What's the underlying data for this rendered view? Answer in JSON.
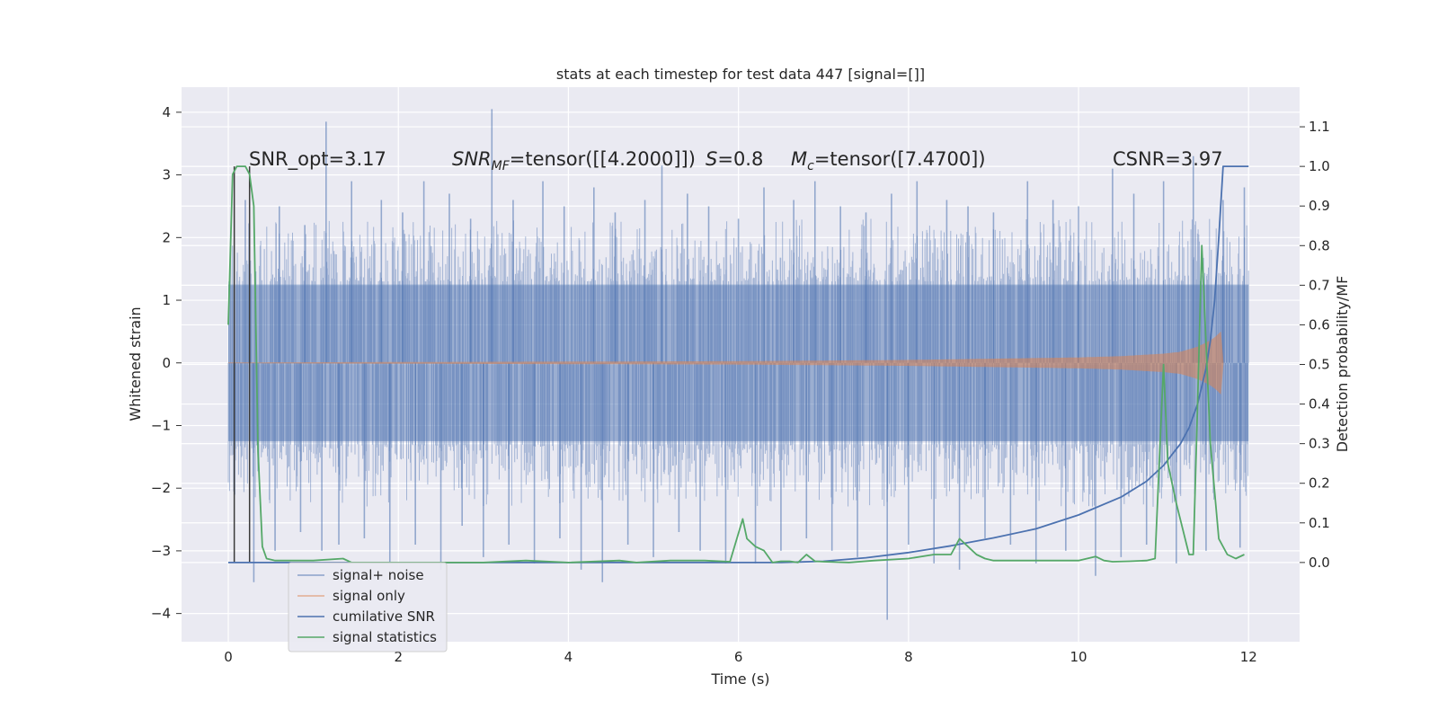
{
  "chart_data": {
    "type": "line",
    "title": "stats at each timestep for test data 447 [signal=[]]",
    "xlabel": "Time (s)",
    "ylabel_left": "Whitened strain",
    "ylabel_right": "Detection probability/MF",
    "xlim": [
      -0.55,
      12.6
    ],
    "ylim_left": [
      -4.45,
      4.4
    ],
    "ylim_right": [
      -0.2,
      1.2
    ],
    "grid": true,
    "legend_position": "lower-left",
    "x_ticks": [
      0,
      2,
      4,
      6,
      8,
      10,
      12
    ],
    "x_tick_labels": [
      "0",
      "2",
      "4",
      "6",
      "8",
      "10",
      "12"
    ],
    "y_left_ticks": [
      -4,
      -3,
      -2,
      -1,
      0,
      1,
      2,
      3,
      4
    ],
    "y_left_tick_labels": [
      "−4",
      "−3",
      "−2",
      "−1",
      "0",
      "1",
      "2",
      "3",
      "4"
    ],
    "y_right_ticks": [
      0.0,
      0.1,
      0.2,
      0.3,
      0.4,
      0.5,
      0.6,
      0.7,
      0.8,
      0.9,
      1.0,
      1.1
    ],
    "y_right_tick_labels": [
      "0.0",
      "0.1",
      "0.2",
      "0.3",
      "0.4",
      "0.5",
      "0.6",
      "0.7",
      "0.8",
      "0.9",
      "1.0",
      "1.1"
    ],
    "annotations": {
      "snr_opt": "SNR_opt=3.17",
      "snr_mf_main": "SNR",
      "snr_mf_sub": "MF",
      "snr_mf_rest": "=tensor([[4.2000]])",
      "s_main": "S",
      "s_rest": "=0.8",
      "mc_main": "M",
      "mc_sub": "c",
      "mc_rest": "=tensor([7.4700])",
      "csnr": "CSNR=3.97"
    },
    "vertical_lines_x": [
      0.07,
      0.25
    ],
    "series": [
      {
        "name": "signal+ noise",
        "axis": "left",
        "color": "#4c72b0",
        "t_range": [
          0,
          12
        ],
        "envelope_abs": 1.25,
        "spike_up_times": [
          0.2,
          0.6,
          0.9,
          1.15,
          1.45,
          1.8,
          2.05,
          2.3,
          2.6,
          2.85,
          3.1,
          3.35,
          3.7,
          3.95,
          4.3,
          4.55,
          4.9,
          5.1,
          5.4,
          5.65,
          6.0,
          6.3,
          6.65,
          6.9,
          7.2,
          7.5,
          7.8,
          8.1,
          8.45,
          8.7,
          9.0,
          9.4,
          9.7,
          10.0,
          10.4,
          10.65,
          11.0,
          11.35,
          11.7,
          11.95
        ],
        "spike_up_values": [
          2.6,
          2.5,
          2.2,
          3.85,
          2.9,
          2.6,
          2.4,
          2.9,
          2.7,
          2.3,
          4.05,
          2.6,
          2.9,
          2.5,
          2.8,
          2.4,
          2.6,
          3.15,
          2.7,
          2.5,
          2.3,
          2.8,
          2.6,
          2.9,
          2.5,
          2.4,
          2.7,
          2.9,
          2.6,
          2.5,
          2.4,
          2.9,
          2.6,
          2.5,
          3.1,
          2.7,
          2.9,
          3.3,
          2.6,
          2.8
        ],
        "spike_down_times": [
          0.3,
          0.55,
          0.85,
          1.1,
          1.3,
          1.6,
          1.9,
          2.2,
          2.5,
          2.75,
          3.0,
          3.3,
          3.6,
          3.9,
          4.15,
          4.4,
          4.7,
          5.0,
          5.3,
          5.55,
          5.85,
          6.2,
          6.5,
          6.8,
          7.1,
          7.4,
          7.75,
          8.0,
          8.3,
          8.6,
          8.9,
          9.2,
          9.5,
          9.85,
          10.2,
          10.5,
          10.8,
          11.15,
          11.5,
          11.9
        ],
        "spike_down_values": [
          -3.5,
          -3.0,
          -2.7,
          -3.0,
          -2.9,
          -2.8,
          -3.2,
          -2.9,
          -3.3,
          -2.6,
          -3.1,
          -2.9,
          -3.2,
          -2.8,
          -3.3,
          -3.5,
          -2.9,
          -3.1,
          -2.7,
          -3.0,
          -3.2,
          -3.2,
          -3.0,
          -2.8,
          -3.0,
          -3.1,
          -4.1,
          -2.9,
          -3.2,
          -3.3,
          -2.8,
          -2.9,
          -3.2,
          -3.0,
          -3.4,
          -3.1,
          -2.9,
          -3.2,
          -3.0,
          -2.95
        ]
      },
      {
        "name": "signal only",
        "axis": "left",
        "color": "#dd8452",
        "t_range": [
          0,
          11.7
        ],
        "amplitude_t": [
          0,
          6,
          8,
          9,
          10,
          10.5,
          11,
          11.2,
          11.4,
          11.55,
          11.62,
          11.68,
          11.7
        ],
        "amplitude": [
          0.0,
          0.02,
          0.04,
          0.06,
          0.08,
          0.1,
          0.14,
          0.17,
          0.25,
          0.35,
          0.42,
          0.5,
          0.0
        ]
      },
      {
        "name": "cumilative SNR",
        "axis": "right",
        "color": "#4c72b0",
        "x": [
          0,
          6.5,
          7.0,
          7.5,
          8.0,
          8.5,
          9.0,
          9.5,
          10.0,
          10.5,
          10.8,
          11.0,
          11.2,
          11.3,
          11.4,
          11.5,
          11.55,
          11.6,
          11.65,
          11.7,
          12.0
        ],
        "y": [
          0.0,
          0.0,
          0.003,
          0.012,
          0.025,
          0.042,
          0.062,
          0.085,
          0.12,
          0.165,
          0.205,
          0.245,
          0.3,
          0.34,
          0.4,
          0.49,
          0.56,
          0.66,
          0.82,
          1.0,
          1.0
        ]
      },
      {
        "name": "signal statistics",
        "axis": "right",
        "color": "#55a868",
        "x": [
          0,
          0.05,
          0.1,
          0.2,
          0.25,
          0.3,
          0.35,
          0.4,
          0.45,
          0.55,
          0.7,
          1.0,
          1.35,
          1.45,
          1.6,
          2.0,
          3.0,
          3.5,
          4.0,
          4.6,
          4.8,
          5.2,
          5.6,
          5.9,
          6.05,
          6.1,
          6.2,
          6.3,
          6.4,
          6.5,
          6.6,
          6.7,
          6.8,
          6.9,
          7.0,
          7.3,
          7.6,
          8.0,
          8.3,
          8.5,
          8.6,
          8.7,
          8.8,
          8.9,
          9.0,
          9.5,
          10.0,
          10.1,
          10.2,
          10.3,
          10.4,
          10.6,
          10.8,
          10.9,
          11.0,
          11.05,
          11.15,
          11.3,
          11.35,
          11.4,
          11.45,
          11.55,
          11.65,
          11.75,
          11.85,
          11.95
        ],
        "y": [
          0.6,
          0.98,
          1.0,
          1.0,
          0.98,
          0.9,
          0.28,
          0.04,
          0.01,
          0.005,
          0.005,
          0.005,
          0.01,
          0.0,
          0.0,
          0.0,
          0.0,
          0.005,
          0.0,
          0.005,
          0.0,
          0.005,
          0.005,
          0.002,
          0.11,
          0.06,
          0.04,
          0.03,
          0.0,
          0.003,
          0.003,
          0.0,
          0.02,
          0.003,
          0.002,
          0.0,
          0.005,
          0.01,
          0.02,
          0.02,
          0.06,
          0.04,
          0.02,
          0.01,
          0.005,
          0.005,
          0.005,
          0.01,
          0.015,
          0.005,
          0.002,
          0.003,
          0.005,
          0.01,
          0.5,
          0.25,
          0.15,
          0.02,
          0.02,
          0.4,
          0.8,
          0.3,
          0.06,
          0.02,
          0.01,
          0.02
        ]
      }
    ]
  }
}
